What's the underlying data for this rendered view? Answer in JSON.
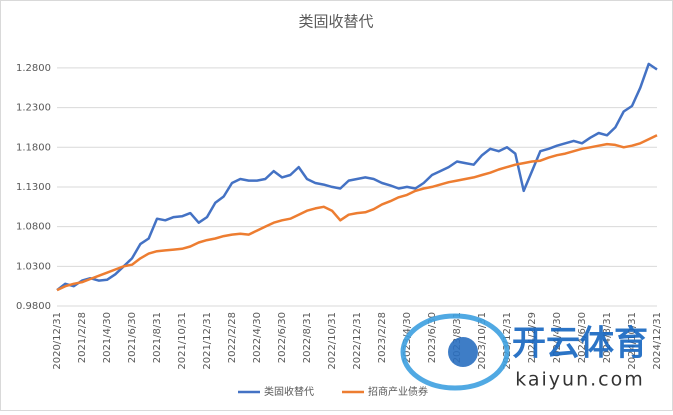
{
  "chart_data": {
    "type": "line",
    "title": "类固收替代",
    "categories": [
      "2020/12/31",
      null,
      null,
      "2021/2/28",
      null,
      null,
      "2021/4/30",
      null,
      null,
      "2021/6/30",
      null,
      null,
      "2021/8/31",
      null,
      null,
      "2021/10/31",
      null,
      null,
      "2021/12/31",
      null,
      null,
      "2022/2/28",
      null,
      null,
      "2022/4/30",
      null,
      null,
      "2022/6/30",
      null,
      null,
      "2022/8/31",
      null,
      null,
      "2022/10/31",
      null,
      null,
      "2022/12/31",
      null,
      null,
      "2023/2/28",
      null,
      null,
      "2023/4/30",
      null,
      null,
      "2023/6/30",
      null,
      null,
      "2023/8/31",
      null,
      null,
      "2023/10/31",
      null,
      null,
      "2023/12/31",
      null,
      null,
      "2024/2/29",
      null,
      null,
      "2024/4/30",
      null,
      null,
      "2024/6/30",
      null,
      null,
      "2024/8/31",
      null,
      null,
      "2024/10/31",
      null,
      null,
      "2024/12/31"
    ],
    "series": [
      {
        "name": "类固收替代",
        "color": "#4472c4",
        "values": [
          1.0,
          1.008,
          1.005,
          1.012,
          1.015,
          1.012,
          1.013,
          1.02,
          1.03,
          1.04,
          1.058,
          1.065,
          1.09,
          1.088,
          1.092,
          1.093,
          1.097,
          1.085,
          1.092,
          1.11,
          1.118,
          1.135,
          1.14,
          1.138,
          1.138,
          1.14,
          1.15,
          1.142,
          1.145,
          1.155,
          1.14,
          1.135,
          1.133,
          1.13,
          1.128,
          1.138,
          1.14,
          1.142,
          1.14,
          1.135,
          1.132,
          1.128,
          1.13,
          1.128,
          1.135,
          1.145,
          1.15,
          1.155,
          1.162,
          1.16,
          1.158,
          1.17,
          1.178,
          1.175,
          1.18,
          1.172,
          1.125,
          1.15,
          1.175,
          1.178,
          1.182,
          1.185,
          1.188,
          1.185,
          1.192,
          1.198,
          1.195,
          1.205,
          1.225,
          1.232,
          1.255,
          1.285,
          1.278
        ]
      },
      {
        "name": "招商产业债券",
        "color": "#ed7d31",
        "values": [
          1.0,
          1.005,
          1.008,
          1.01,
          1.014,
          1.018,
          1.022,
          1.026,
          1.03,
          1.032,
          1.04,
          1.046,
          1.049,
          1.05,
          1.051,
          1.052,
          1.055,
          1.06,
          1.063,
          1.065,
          1.068,
          1.07,
          1.071,
          1.07,
          1.075,
          1.08,
          1.085,
          1.088,
          1.09,
          1.095,
          1.1,
          1.103,
          1.105,
          1.1,
          1.088,
          1.095,
          1.097,
          1.098,
          1.102,
          1.108,
          1.112,
          1.117,
          1.12,
          1.125,
          1.128,
          1.13,
          1.133,
          1.136,
          1.138,
          1.14,
          1.142,
          1.145,
          1.148,
          1.152,
          1.155,
          1.158,
          1.16,
          1.162,
          1.163,
          1.167,
          1.17,
          1.172,
          1.175,
          1.178,
          1.18,
          1.182,
          1.184,
          1.183,
          1.18,
          1.182,
          1.185,
          1.19,
          1.195
        ]
      }
    ],
    "ylim": [
      0.98,
      1.3
    ],
    "yticks": [
      {
        "value": 0.98,
        "label": "0.9800"
      },
      {
        "value": 1.03,
        "label": "1.0300"
      },
      {
        "value": 1.08,
        "label": "1.0800"
      },
      {
        "value": 1.13,
        "label": "1.1300"
      },
      {
        "value": 1.18,
        "label": "1.1800"
      },
      {
        "value": 1.23,
        "label": "1.2300"
      },
      {
        "value": 1.28,
        "label": "1.2800"
      }
    ],
    "grid": true,
    "legend": "bottom",
    "watermark_title": "开云体育",
    "watermark_url": "kaiyun.com"
  }
}
